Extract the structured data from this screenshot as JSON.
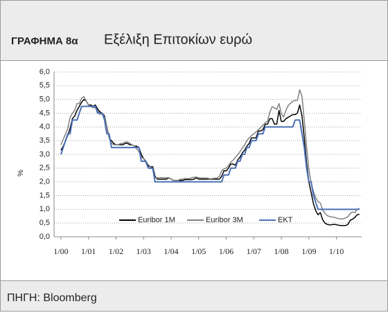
{
  "header": {
    "label": "ΓΡΑΦΗΜΑ 8α",
    "title": "Εξέλιξη Επιτοκίων ευρώ"
  },
  "footer": {
    "source": "ΠΗΓΗ: Bloomberg"
  },
  "chart_data": {
    "type": "line",
    "y_label": "%",
    "x": [
      "2000-01",
      "2000-02",
      "2000-03",
      "2000-04",
      "2000-05",
      "2000-06",
      "2000-07",
      "2000-08",
      "2000-09",
      "2000-10",
      "2000-11",
      "2000-12",
      "2001-01",
      "2001-02",
      "2001-03",
      "2001-04",
      "2001-05",
      "2001-06",
      "2001-07",
      "2001-08",
      "2001-09",
      "2001-10",
      "2001-11",
      "2001-12",
      "2002-01",
      "2002-02",
      "2002-03",
      "2002-04",
      "2002-05",
      "2002-06",
      "2002-07",
      "2002-08",
      "2002-09",
      "2002-10",
      "2002-11",
      "2002-12",
      "2003-01",
      "2003-02",
      "2003-03",
      "2003-04",
      "2003-05",
      "2003-06",
      "2003-07",
      "2003-08",
      "2003-09",
      "2003-10",
      "2003-11",
      "2003-12",
      "2004-01",
      "2004-02",
      "2004-03",
      "2004-04",
      "2004-05",
      "2004-06",
      "2004-07",
      "2004-08",
      "2004-09",
      "2004-10",
      "2004-11",
      "2004-12",
      "2005-01",
      "2005-02",
      "2005-03",
      "2005-04",
      "2005-05",
      "2005-06",
      "2005-07",
      "2005-08",
      "2005-09",
      "2005-10",
      "2005-11",
      "2005-12",
      "2006-01",
      "2006-02",
      "2006-03",
      "2006-04",
      "2006-05",
      "2006-06",
      "2006-07",
      "2006-08",
      "2006-09",
      "2006-10",
      "2006-11",
      "2006-12",
      "2007-01",
      "2007-02",
      "2007-03",
      "2007-04",
      "2007-05",
      "2007-06",
      "2007-07",
      "2007-08",
      "2007-09",
      "2007-10",
      "2007-11",
      "2007-12",
      "2008-01",
      "2008-02",
      "2008-03",
      "2008-04",
      "2008-05",
      "2008-06",
      "2008-07",
      "2008-08",
      "2008-09",
      "2008-10",
      "2008-11",
      "2008-12",
      "2009-01",
      "2009-02",
      "2009-03",
      "2009-04",
      "2009-05",
      "2009-06",
      "2009-07",
      "2009-08",
      "2009-09",
      "2009-10",
      "2009-11",
      "2009-12",
      "2010-01",
      "2010-02",
      "2010-03",
      "2010-04",
      "2010-05",
      "2010-06",
      "2010-07",
      "2010-08",
      "2010-09",
      "2010-10",
      "2010-11"
    ],
    "series": [
      {
        "name": "Euribor 1M",
        "color": "#000000",
        "values": [
          3.15,
          3.3,
          3.5,
          3.7,
          3.95,
          4.3,
          4.4,
          4.6,
          4.75,
          4.9,
          5.0,
          4.95,
          4.8,
          4.8,
          4.75,
          4.8,
          4.65,
          4.55,
          4.5,
          4.4,
          4.0,
          3.6,
          3.5,
          3.4,
          3.35,
          3.35,
          3.35,
          3.35,
          3.4,
          3.4,
          3.35,
          3.35,
          3.3,
          3.3,
          3.25,
          3.0,
          2.85,
          2.75,
          2.6,
          2.55,
          2.55,
          2.2,
          2.1,
          2.1,
          2.1,
          2.1,
          2.1,
          2.15,
          2.1,
          2.05,
          2.05,
          2.05,
          2.05,
          2.05,
          2.08,
          2.08,
          2.08,
          2.08,
          2.1,
          2.15,
          2.1,
          2.1,
          2.1,
          2.1,
          2.1,
          2.1,
          2.1,
          2.1,
          2.1,
          2.1,
          2.2,
          2.4,
          2.4,
          2.5,
          2.65,
          2.65,
          2.6,
          2.8,
          2.9,
          3.05,
          3.15,
          3.3,
          3.4,
          3.6,
          3.6,
          3.6,
          3.85,
          3.85,
          3.9,
          4.1,
          4.1,
          4.3,
          4.3,
          4.1,
          4.1,
          4.6,
          4.2,
          4.2,
          4.3,
          4.35,
          4.4,
          4.45,
          4.45,
          4.5,
          4.8,
          4.4,
          3.6,
          2.7,
          2.0,
          1.6,
          1.2,
          0.95,
          0.8,
          0.88,
          0.62,
          0.5,
          0.45,
          0.43,
          0.44,
          0.45,
          0.44,
          0.42,
          0.41,
          0.41,
          0.41,
          0.45,
          0.6,
          0.64,
          0.7,
          0.8,
          0.82
        ]
      },
      {
        "name": "Euribor 3M",
        "color": "#808080",
        "values": [
          3.35,
          3.55,
          3.75,
          3.95,
          4.35,
          4.5,
          4.6,
          4.85,
          4.85,
          5.05,
          5.1,
          4.95,
          4.8,
          4.75,
          4.7,
          4.7,
          4.6,
          4.45,
          4.5,
          4.35,
          4.0,
          3.6,
          3.4,
          3.35,
          3.35,
          3.35,
          3.4,
          3.4,
          3.45,
          3.45,
          3.4,
          3.35,
          3.3,
          3.2,
          3.1,
          2.9,
          2.85,
          2.7,
          2.55,
          2.55,
          2.45,
          2.15,
          2.15,
          2.15,
          2.15,
          2.15,
          2.15,
          2.15,
          2.1,
          2.05,
          2.05,
          2.05,
          2.1,
          2.1,
          2.12,
          2.12,
          2.12,
          2.15,
          2.17,
          2.17,
          2.15,
          2.14,
          2.14,
          2.14,
          2.13,
          2.11,
          2.12,
          2.13,
          2.14,
          2.2,
          2.4,
          2.47,
          2.5,
          2.6,
          2.72,
          2.79,
          2.89,
          2.99,
          3.1,
          3.23,
          3.34,
          3.5,
          3.6,
          3.68,
          3.75,
          3.82,
          3.89,
          3.98,
          4.07,
          4.15,
          4.22,
          4.54,
          4.74,
          4.69,
          4.64,
          4.85,
          4.48,
          4.36,
          4.6,
          4.78,
          4.86,
          4.94,
          4.96,
          4.97,
          5.35,
          5.11,
          4.24,
          3.29,
          2.46,
          1.94,
          1.64,
          1.42,
          1.28,
          1.23,
          0.97,
          0.86,
          0.77,
          0.74,
          0.72,
          0.71,
          0.68,
          0.66,
          0.65,
          0.65,
          0.69,
          0.73,
          0.85,
          0.9,
          0.88,
          1.0,
          1.04
        ]
      },
      {
        "name": "ΕΚΤ",
        "color": "#4a6fb5",
        "values": [
          3.0,
          3.25,
          3.5,
          3.75,
          3.75,
          4.25,
          4.25,
          4.25,
          4.5,
          4.75,
          4.75,
          4.75,
          4.75,
          4.75,
          4.75,
          4.75,
          4.5,
          4.5,
          4.5,
          4.25,
          3.75,
          3.75,
          3.25,
          3.25,
          3.25,
          3.25,
          3.25,
          3.25,
          3.25,
          3.25,
          3.25,
          3.25,
          3.25,
          3.25,
          3.25,
          2.75,
          2.75,
          2.75,
          2.5,
          2.5,
          2.5,
          2.0,
          2.0,
          2.0,
          2.0,
          2.0,
          2.0,
          2.0,
          2.0,
          2.0,
          2.0,
          2.0,
          2.0,
          2.0,
          2.0,
          2.0,
          2.0,
          2.0,
          2.0,
          2.0,
          2.0,
          2.0,
          2.0,
          2.0,
          2.0,
          2.0,
          2.0,
          2.0,
          2.0,
          2.0,
          2.0,
          2.25,
          2.25,
          2.25,
          2.5,
          2.5,
          2.5,
          2.75,
          2.75,
          3.0,
          3.0,
          3.25,
          3.25,
          3.5,
          3.5,
          3.5,
          3.75,
          3.75,
          3.75,
          4.0,
          4.0,
          4.0,
          4.0,
          4.0,
          4.0,
          4.0,
          4.0,
          4.0,
          4.0,
          4.0,
          4.0,
          4.0,
          4.25,
          4.25,
          4.25,
          3.75,
          3.25,
          2.5,
          2.0,
          2.0,
          1.5,
          1.25,
          1.0,
          1.0,
          1.0,
          1.0,
          1.0,
          1.0,
          1.0,
          1.0,
          1.0,
          1.0,
          1.0,
          1.0,
          1.0,
          1.0,
          1.0,
          1.0,
          1.0,
          1.0,
          1.0
        ]
      }
    ],
    "xlim": [
      "1999-10",
      "2010-12"
    ],
    "xticks": [
      {
        "value": "2000-01",
        "label": "1/00"
      },
      {
        "value": "2001-01",
        "label": "1/01"
      },
      {
        "value": "2002-01",
        "label": "1/02"
      },
      {
        "value": "2003-01",
        "label": "1/03"
      },
      {
        "value": "2004-01",
        "label": "1/04"
      },
      {
        "value": "2005-01",
        "label": "1/05"
      },
      {
        "value": "2006-01",
        "label": "1/06"
      },
      {
        "value": "2007-01",
        "label": "1/07"
      },
      {
        "value": "2008-01",
        "label": "1/08"
      },
      {
        "value": "2009-01",
        "label": "1/09"
      },
      {
        "value": "2010-01",
        "label": "1/10"
      }
    ],
    "ylim": [
      0,
      6
    ],
    "yticks": [
      {
        "value": 0,
        "label": "0,0"
      },
      {
        "value": 0.5,
        "label": "0,5"
      },
      {
        "value": 1,
        "label": "1,0"
      },
      {
        "value": 1.5,
        "label": "1,5"
      },
      {
        "value": 2,
        "label": "2,0"
      },
      {
        "value": 2.5,
        "label": "2,5"
      },
      {
        "value": 3,
        "label": "3,0"
      },
      {
        "value": 3.5,
        "label": "3,5"
      },
      {
        "value": 4,
        "label": "4,0"
      },
      {
        "value": 4.5,
        "label": "4,5"
      },
      {
        "value": 5,
        "label": "5,0"
      },
      {
        "value": 5.5,
        "label": "5,5"
      },
      {
        "value": 6,
        "label": "6,0"
      }
    ],
    "grid": true,
    "legend": "bottom-right"
  }
}
